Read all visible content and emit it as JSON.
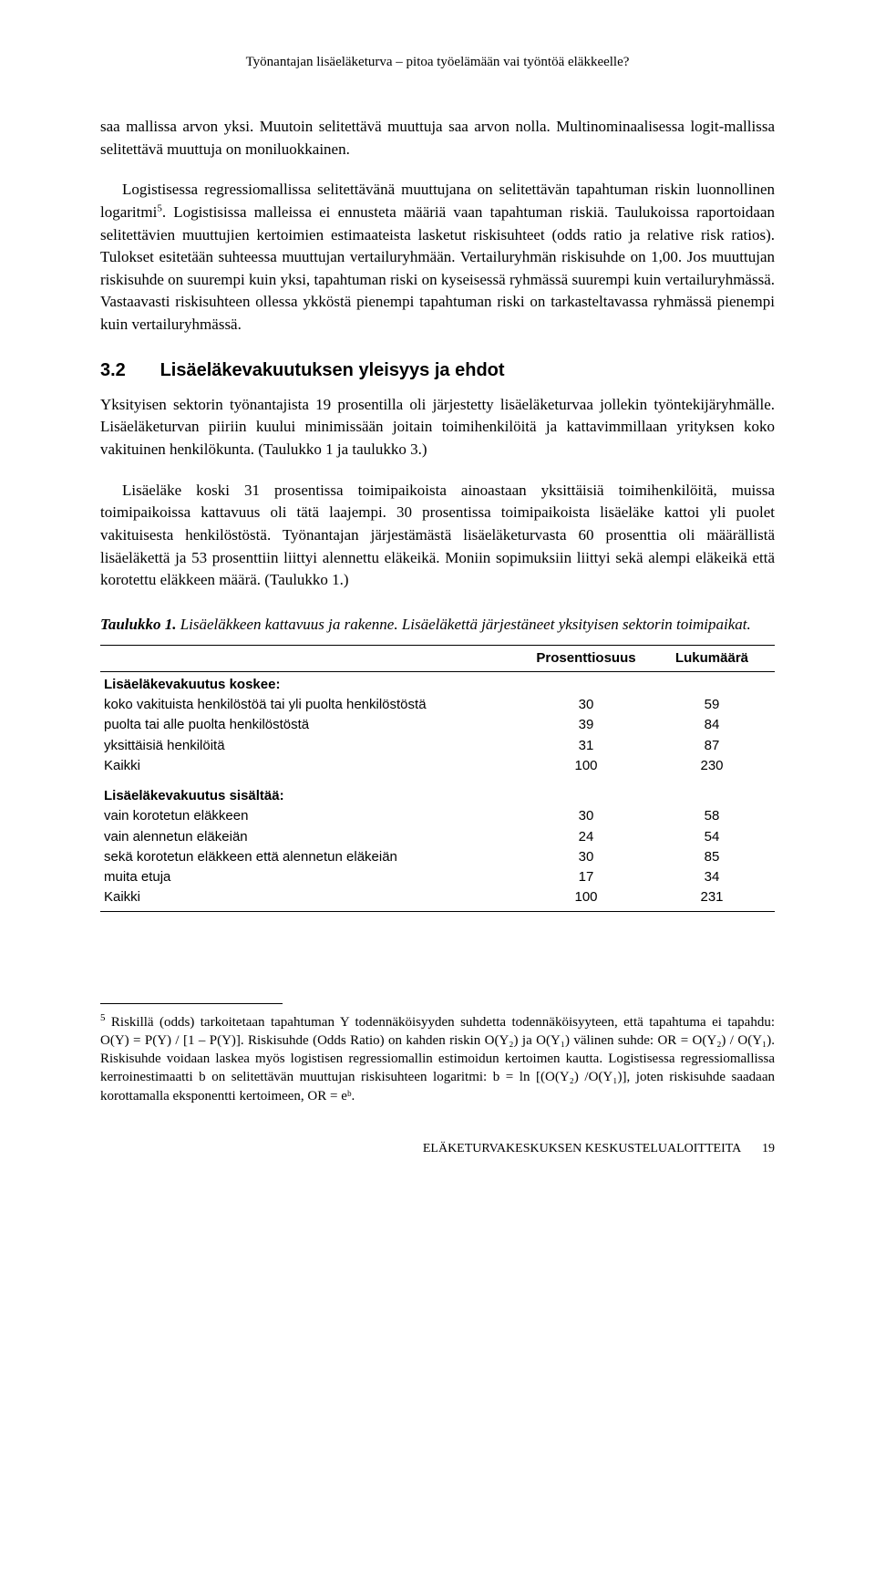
{
  "running_header": "Työnantajan lisäeläketurva – pitoa työelämään vai työntöä eläkkeelle?",
  "para1": "saa mallissa arvon yksi. Muutoin selitettävä muuttuja saa arvon nolla. Multinominaalisessa logit-mallissa selitettävä muuttuja on moniluokkainen.",
  "para2_part1": "Logistisessa regressiomallissa selitettävänä muuttujana on selitettävän tapahtuman riskin luonnollinen logaritmi",
  "para2_fn_ref": "5",
  "para2_part2": ". Logistisissa malleissa ei ennusteta määriä vaan tapahtuman riskiä. Taulukoissa raportoidaan selitettävien muuttujien kertoimien estimaateista lasketut riskisuhteet (odds ratio ja relative risk ratios). Tulokset esitetään suhteessa muuttujan vertailuryhmään. Vertailuryhmän riskisuhde on 1,00. Jos muuttujan riskisuhde on suurempi kuin yksi, tapahtuman riski on kyseisessä ryhmässä suurempi kuin vertailuryhmässä. Vastaavasti riskisuhteen ollessa ykköstä pienempi tapahtuman riski on tarkasteltavassa ryhmässä pienempi kuin vertailuryhmässä.",
  "section": {
    "number": "3.2",
    "title": "Lisäeläkevakuutuksen yleisyys ja ehdot"
  },
  "para3": "Yksityisen sektorin työnantajista 19 prosentilla oli järjestetty lisäeläketurvaa jollekin työntekijäryhmälle. Lisäeläketurvan piiriin kuului minimissään joitain toimihenkilöitä ja kattavimmillaan yrityksen koko vakituinen henkilökunta. (Taulukko 1 ja taulukko 3.)",
  "para4": "Lisäeläke koski 31 prosentissa toimipaikoista ainoastaan yksittäisiä toimihenkilöitä, muissa toimipaikoissa kattavuus oli tätä laajempi. 30 prosentissa toimipaikoista lisäeläke kattoi yli puolet vakituisesta henkilöstöstä. Työnantajan järjestämästä lisäeläketurvasta 60 prosenttia oli määrällistä lisäeläkettä ja 53 prosenttiin liittyi alennettu eläkeikä. Moniin sopimuksiin liittyi sekä alempi eläkeikä että korotettu eläkkeen määrä. (Taulukko 1.)",
  "table": {
    "caption_bold": "Taulukko 1.",
    "caption_rest": " Lisäeläkkeen kattavuus ja rakenne. Lisäeläkettä järjestäneet yksityisen sektorin toimipaikat.",
    "columns": [
      "",
      "Prosenttiosuus",
      "Lukumäärä"
    ],
    "section1_head": "Lisäeläkevakuutus koskee:",
    "section1_rows": [
      {
        "label": "koko vakituista henkilöstöä tai yli puolta henkilöstöstä",
        "pct": "30",
        "n": "59"
      },
      {
        "label": "puolta tai alle puolta henkilöstöstä",
        "pct": "39",
        "n": "84"
      },
      {
        "label": "yksittäisiä henkilöitä",
        "pct": "31",
        "n": "87"
      },
      {
        "label": "Kaikki",
        "pct": "100",
        "n": "230"
      }
    ],
    "section2_head": "Lisäeläkevakuutus sisältää:",
    "section2_rows": [
      {
        "label": "vain korotetun eläkkeen",
        "pct": "30",
        "n": "58"
      },
      {
        "label": "vain alennetun eläkeiän",
        "pct": "24",
        "n": "54"
      },
      {
        "label": "sekä korotetun eläkkeen että alennetun eläkeiän",
        "pct": "30",
        "n": "85"
      },
      {
        "label": "muita etuja",
        "pct": "17",
        "n": "34"
      },
      {
        "label": "Kaikki",
        "pct": "100",
        "n": "231"
      }
    ]
  },
  "footnote": {
    "marker": "5",
    "text": " Riskillä (odds) tarkoitetaan tapahtuman Y todennäköisyyden suhdetta todennäköisyyteen, että tapahtuma ei tapahdu: O(Y) = P(Y) / [1 – P(Y)]. Riskisuhde (Odds Ratio) on kahden riskin O(Y₂) ja O(Y₁) välinen suhde: OR = O(Y₂) / O(Y₁). Riskisuhde voidaan laskea myös logistisen regressiomallin estimoidun kertoimen kautta. Logistisessa regressiomallissa kerroinestimaatti b on selitettävän muuttujan riskisuhteen logaritmi: b = ln [(O(Y₂) /O(Y₁)], joten riskisuhde saadaan korottamalla eksponentti kertoimeen, OR = eᵇ."
  },
  "footer": {
    "text": "ELÄKETURVAKESKUKSEN KESKUSTELUALOITTEITA",
    "page": "19"
  }
}
